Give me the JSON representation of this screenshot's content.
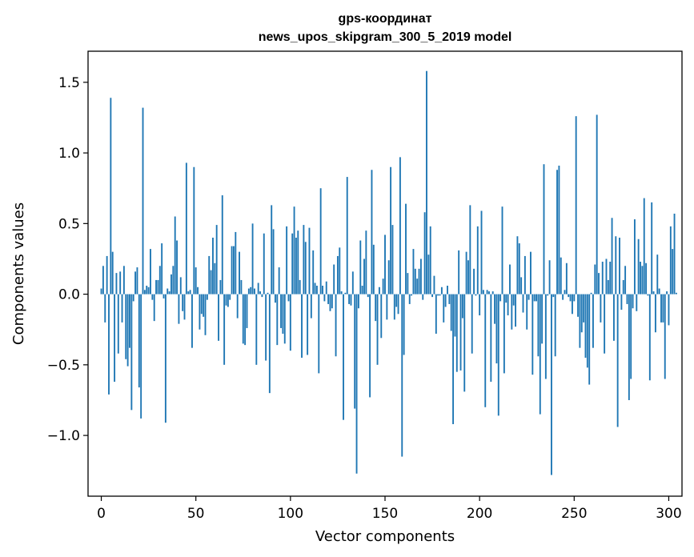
{
  "chart_data": {
    "type": "bar",
    "title": "gps-координат",
    "subtitle": "news_upos_skipgram_300_5_2019 model",
    "xlabel": "Vector components",
    "ylabel": "Components values",
    "xlim": [
      -7,
      307
    ],
    "ylim": [
      -1.43,
      1.72
    ],
    "xticks": [
      0,
      50,
      100,
      150,
      200,
      250,
      300
    ],
    "yticks": [
      -1.0,
      -0.5,
      0.0,
      0.5,
      1.0,
      1.5
    ],
    "ytick_labels": [
      "−1.0",
      "−0.5",
      "0.0",
      "0.5",
      "1.0",
      "1.5"
    ],
    "xtick_labels": [
      "0",
      "50",
      "100",
      "150",
      "200",
      "250",
      "300"
    ],
    "grid": false,
    "bar_color": "#1f77b4",
    "values": [
      0.04,
      0.2,
      -0.2,
      0.27,
      -0.71,
      1.39,
      0.3,
      -0.62,
      0.15,
      -0.42,
      0.16,
      -0.2,
      0.2,
      -0.46,
      -0.51,
      -0.38,
      -0.82,
      -0.05,
      0.16,
      0.19,
      -0.66,
      -0.88,
      1.32,
      0.03,
      0.06,
      0.05,
      0.32,
      -0.04,
      -0.19,
      0.1,
      0.1,
      0.2,
      0.36,
      -0.03,
      -0.91,
      0.04,
      0.02,
      0.14,
      0.2,
      0.55,
      0.38,
      -0.21,
      0.12,
      -0.12,
      -0.18,
      0.93,
      0.02,
      0.03,
      -0.38,
      0.9,
      0.19,
      0.05,
      -0.25,
      -0.14,
      -0.16,
      -0.29,
      -0.04,
      0.27,
      0.17,
      0.4,
      0.22,
      0.49,
      -0.33,
      0.1,
      0.7,
      -0.5,
      -0.08,
      -0.09,
      -0.04,
      0.34,
      0.34,
      0.44,
      -0.17,
      0.3,
      0.1,
      -0.35,
      -0.36,
      -0.24,
      0.04,
      0.05,
      0.5,
      0.04,
      -0.5,
      0.08,
      0.02,
      -0.02,
      0.43,
      -0.47,
      0.01,
      -0.7,
      0.63,
      0.46,
      -0.06,
      -0.36,
      0.19,
      -0.24,
      -0.28,
      -0.35,
      0.48,
      -0.05,
      -0.4,
      0.43,
      0.62,
      0.4,
      0.45,
      0.1,
      -0.45,
      0.49,
      0.37,
      -0.43,
      0.47,
      -0.17,
      0.31,
      0.08,
      0.06,
      -0.56,
      0.75,
      0.06,
      -0.05,
      0.09,
      -0.07,
      -0.12,
      -0.1,
      0.21,
      -0.44,
      0.27,
      0.33,
      0.02,
      -0.89,
      0.01,
      0.83,
      -0.07,
      -0.08,
      0.16,
      -0.81,
      -1.27,
      -0.1,
      0.38,
      0.06,
      0.25,
      0.45,
      -0.02,
      -0.73,
      0.88,
      0.35,
      -0.19,
      -0.5,
      0.05,
      -0.31,
      0.11,
      0.42,
      -0.18,
      0.24,
      0.9,
      0.49,
      -0.18,
      -0.09,
      -0.14,
      0.97,
      -1.15,
      -0.43,
      0.64,
      0.15,
      -0.07,
      -0.01,
      0.32,
      0.18,
      0.11,
      0.18,
      0.25,
      -0.04,
      0.58,
      1.58,
      0.28,
      0.48,
      -0.02,
      0.13,
      -0.28,
      -0.01,
      -0.01,
      0.05,
      -0.2,
      -0.09,
      0.06,
      -0.07,
      -0.26,
      -0.92,
      -0.3,
      -0.55,
      0.31,
      -0.54,
      -0.17,
      -0.69,
      0.3,
      0.24,
      0.63,
      -0.42,
      0.18,
      -0.01,
      0.48,
      -0.15,
      0.59,
      0.03,
      -0.8,
      0.03,
      0.02,
      -0.62,
      0.02,
      -0.21,
      -0.49,
      -0.86,
      -0.05,
      0.62,
      -0.56,
      -0.06,
      -0.15,
      0.21,
      -0.25,
      -0.08,
      -0.23,
      0.41,
      0.36,
      0.12,
      -0.13,
      0.27,
      -0.25,
      -0.04,
      0.3,
      -0.57,
      -0.05,
      -0.05,
      -0.44,
      -0.85,
      -0.35,
      0.92,
      -0.6,
      -0.01,
      0.24,
      -1.28,
      -0.02,
      -0.44,
      0.88,
      0.91,
      0.26,
      -0.04,
      0.03,
      0.22,
      -0.02,
      -0.05,
      -0.14,
      -0.05,
      1.26,
      -0.16,
      -0.38,
      -0.27,
      -0.2,
      -0.45,
      -0.52,
      -0.64,
      0.01,
      -0.38,
      0.21,
      1.27,
      0.15,
      -0.2,
      0.23,
      -0.42,
      0.25,
      0.1,
      0.23,
      0.54,
      -0.33,
      0.41,
      -0.94,
      0.4,
      -0.11,
      0.1,
      0.2,
      -0.07,
      -0.75,
      -0.6,
      -0.1,
      0.53,
      -0.12,
      0.39,
      0.23,
      0.2,
      0.68,
      0.22,
      -0.01,
      -0.61,
      0.65,
      0.02,
      -0.27,
      0.28,
      0.04,
      -0.2,
      -0.2,
      -0.6,
      0.02,
      -0.22,
      0.48,
      0.32,
      0.57,
      0.01
    ]
  }
}
